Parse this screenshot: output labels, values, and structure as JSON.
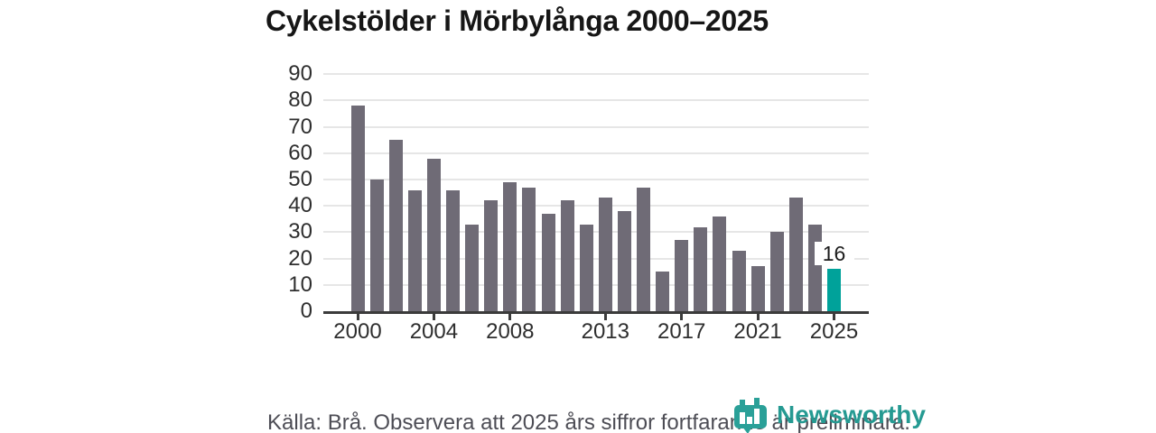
{
  "title": "Cykelstölder i Mörbylånga 2000–2025",
  "chart_data": {
    "type": "bar",
    "title": "Cykelstölder i Mörbylånga 2000–2025",
    "x": [
      2000,
      2001,
      2002,
      2003,
      2004,
      2005,
      2006,
      2007,
      2008,
      2009,
      2010,
      2011,
      2012,
      2013,
      2014,
      2015,
      2016,
      2017,
      2018,
      2019,
      2020,
      2021,
      2022,
      2023,
      2024,
      2025
    ],
    "values": [
      78,
      50,
      65,
      46,
      58,
      46,
      33,
      42,
      49,
      47,
      37,
      42,
      33,
      43,
      38,
      47,
      15,
      27,
      32,
      36,
      23,
      17,
      30,
      43,
      33,
      16
    ],
    "highlight_index": 25,
    "highlight_label": "16",
    "xlabel": "",
    "ylabel": "",
    "ylim": [
      0,
      90
    ],
    "yticks": [
      0,
      10,
      20,
      30,
      40,
      50,
      60,
      70,
      80,
      90
    ],
    "xticks": [
      2000,
      2004,
      2008,
      2013,
      2017,
      2021,
      2025
    ],
    "grid": true,
    "legend": false,
    "bar_color": "#6F6B76",
    "highlight_color": "#00A29A"
  },
  "footer": {
    "source": "Källa: Brå. Observera att 2025 års siffror fortfarande är preliminära."
  },
  "branding": {
    "name": "Newsworthy",
    "color": "#259a92",
    "icon": "newsworthy-logo-icon"
  }
}
